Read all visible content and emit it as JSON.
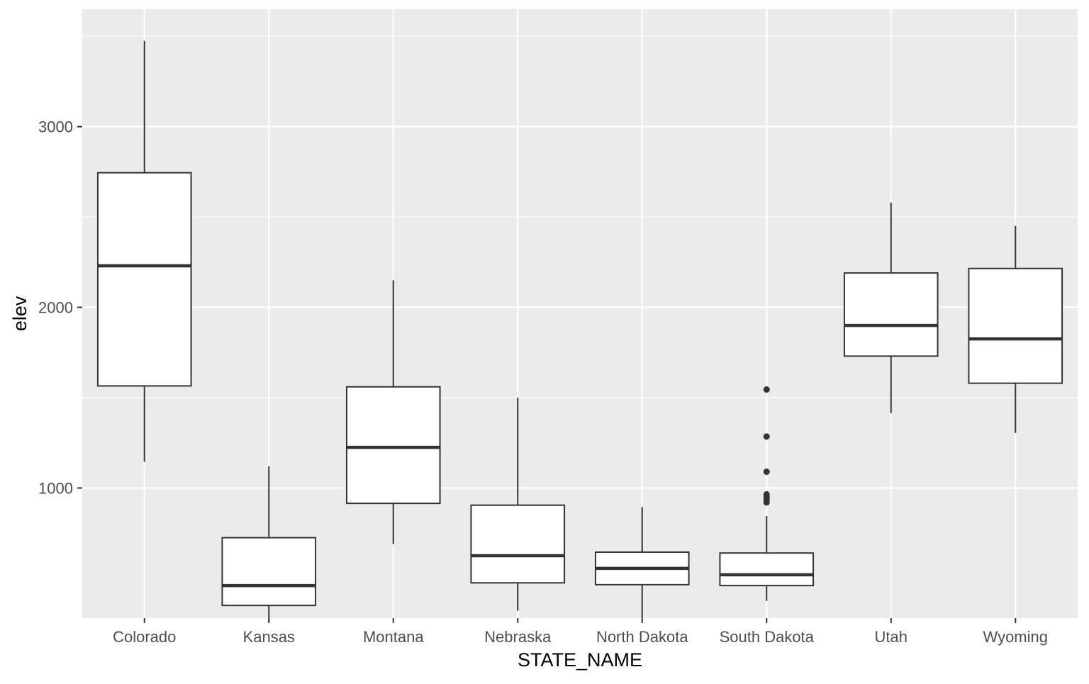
{
  "chart_data": {
    "type": "boxplot",
    "xlabel": "STATE_NAME",
    "ylabel": "elev",
    "ylim": [
      280,
      3650
    ],
    "yticks": [
      1000,
      2000,
      3000
    ],
    "y_minor_ticks": [
      1500,
      2500,
      3500
    ],
    "grid": true,
    "categories": [
      "Colorado",
      "Kansas",
      "Montana",
      "Nebraska",
      "North Dakota",
      "South Dakota",
      "Utah",
      "Wyoming"
    ],
    "boxes": [
      {
        "category": "Colorado",
        "whisker_low": 1145,
        "q1": 1565,
        "median": 2230,
        "q3": 2745,
        "whisker_high": 3475,
        "outliers": []
      },
      {
        "category": "Kansas",
        "whisker_low": 260,
        "q1": 350,
        "median": 460,
        "q3": 725,
        "whisker_high": 1120,
        "outliers": []
      },
      {
        "category": "Montana",
        "whisker_low": 690,
        "q1": 915,
        "median": 1225,
        "q3": 1560,
        "whisker_high": 2150,
        "outliers": []
      },
      {
        "category": "Nebraska",
        "whisker_low": 320,
        "q1": 475,
        "median": 625,
        "q3": 905,
        "whisker_high": 1500,
        "outliers": []
      },
      {
        "category": "North Dakota",
        "whisker_low": 280,
        "q1": 465,
        "median": 555,
        "q3": 645,
        "whisker_high": 895,
        "outliers": []
      },
      {
        "category": "South Dakota",
        "whisker_low": 375,
        "q1": 460,
        "median": 520,
        "q3": 640,
        "whisker_high": 845,
        "outliers": [
          920,
          935,
          950,
          965,
          1090,
          1285,
          1545
        ]
      },
      {
        "category": "Utah",
        "whisker_low": 1415,
        "q1": 1730,
        "median": 1900,
        "q3": 2190,
        "whisker_high": 2580,
        "outliers": []
      },
      {
        "category": "Wyoming",
        "whisker_low": 1305,
        "q1": 1580,
        "median": 1825,
        "q3": 2215,
        "whisker_high": 2450,
        "outliers": []
      }
    ],
    "colors": {
      "panel": "#ebebeb",
      "grid": "#ffffff",
      "box_fill": "#ffffff",
      "box_line": "#333333",
      "tick_text": "#4d4d4d",
      "axis_title": "#000000"
    }
  }
}
